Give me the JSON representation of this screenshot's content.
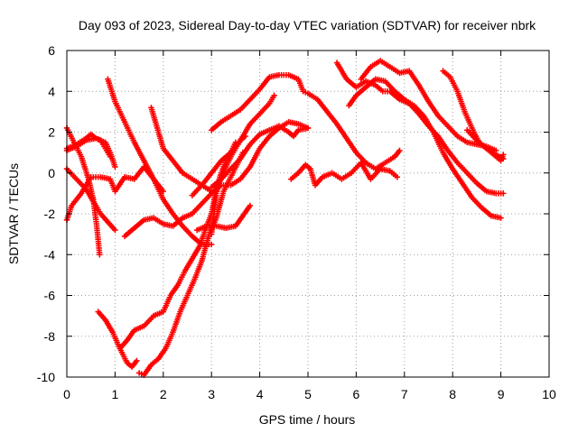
{
  "chart_data": {
    "type": "scatter",
    "title": "Day 093 of 2023, Sidereal Day-to-day VTEC variation (SDTVAR) for receiver nbrk",
    "xlabel": "GPS time / hours",
    "ylabel": "SDTVAR / TECUs",
    "xlim": [
      0,
      10
    ],
    "ylim": [
      -10,
      6
    ],
    "xticks": [
      "0",
      "1",
      "2",
      "3",
      "4",
      "5",
      "6",
      "7",
      "8",
      "9",
      "10"
    ],
    "yticks": [
      "-10",
      "-8",
      "-6",
      "-4",
      "-2",
      "0",
      "2",
      "4",
      "6"
    ],
    "grid": true,
    "marker": "+",
    "color": "#ff0000",
    "series": [
      {
        "points": [
          [
            0,
            2.2
          ],
          [
            0.15,
            1.5
          ],
          [
            0.3,
            0.8
          ],
          [
            0.45,
            -0.3
          ],
          [
            0.55,
            -1.3
          ],
          [
            0.62,
            -2.6
          ],
          [
            0.68,
            -4.0
          ]
        ]
      },
      {
        "points": [
          [
            0,
            0.2
          ],
          [
            0.2,
            -0.3
          ],
          [
            0.4,
            -0.8
          ],
          [
            0.6,
            -1.6
          ],
          [
            0.7,
            -2.0
          ],
          [
            0.85,
            -2.4
          ],
          [
            1.0,
            -2.8
          ]
        ]
      },
      {
        "points": [
          [
            0,
            -2.3
          ],
          [
            0.1,
            -1.6
          ],
          [
            0.3,
            -1.0
          ],
          [
            0.5,
            -0.2
          ],
          [
            0.7,
            -0.2
          ],
          [
            0.9,
            -0.3
          ],
          [
            1.0,
            -0.9
          ],
          [
            1.2,
            -0.2
          ],
          [
            1.4,
            -0.3
          ],
          [
            1.6,
            0.3
          ],
          [
            1.8,
            -0.3
          ],
          [
            2.0,
            -0.9
          ]
        ]
      },
      {
        "points": [
          [
            0,
            1.1
          ],
          [
            0.2,
            1.3
          ],
          [
            0.4,
            1.6
          ],
          [
            0.6,
            1.7
          ],
          [
            0.8,
            1.5
          ],
          [
            0.9,
            1.0
          ],
          [
            1.0,
            0.3
          ]
        ]
      },
      {
        "points": [
          [
            0,
            1.2
          ],
          [
            0.2,
            1.4
          ],
          [
            0.4,
            1.7
          ],
          [
            0.5,
            1.9
          ],
          [
            0.6,
            1.7
          ],
          [
            0.7,
            1.6
          ],
          [
            0.8,
            1.2
          ],
          [
            0.9,
            0.8
          ]
        ]
      },
      {
        "points": [
          [
            0.85,
            4.6
          ],
          [
            1.0,
            3.5
          ],
          [
            1.2,
            2.5
          ],
          [
            1.4,
            1.5
          ],
          [
            1.6,
            0.6
          ],
          [
            1.8,
            -0.3
          ],
          [
            2.0,
            -1.3
          ],
          [
            2.2,
            -2.0
          ],
          [
            2.4,
            -2.6
          ],
          [
            2.6,
            -3.1
          ],
          [
            2.8,
            -3.5
          ],
          [
            3.0,
            -3.5
          ]
        ]
      },
      {
        "points": [
          [
            1.75,
            3.2
          ],
          [
            1.9,
            2.0
          ],
          [
            2.0,
            1.2
          ],
          [
            2.2,
            0.6
          ],
          [
            2.4,
            0.0
          ],
          [
            2.6,
            -0.3
          ],
          [
            2.8,
            -0.6
          ],
          [
            3.0,
            -0.9
          ]
        ]
      },
      {
        "points": [
          [
            0.65,
            -6.8
          ],
          [
            0.8,
            -7.2
          ],
          [
            0.95,
            -7.8
          ],
          [
            1.1,
            -8.6
          ],
          [
            1.25,
            -9.3
          ],
          [
            1.35,
            -9.5
          ],
          [
            1.45,
            -9.2
          ]
        ]
      },
      {
        "points": [
          [
            1.5,
            -9.8
          ],
          [
            1.6,
            -9.9
          ],
          [
            1.75,
            -9.4
          ],
          [
            1.9,
            -9.1
          ],
          [
            2.05,
            -8.6
          ],
          [
            2.2,
            -7.8
          ],
          [
            2.35,
            -6.8
          ],
          [
            2.5,
            -6.0
          ],
          [
            2.65,
            -5.2
          ],
          [
            2.8,
            -4.3
          ],
          [
            2.95,
            -3.0
          ],
          [
            3.1,
            -2.2
          ],
          [
            3.25,
            -0.9
          ],
          [
            3.4,
            -0.2
          ],
          [
            3.55,
            0.5
          ],
          [
            3.65,
            1.0
          ]
        ]
      },
      {
        "points": [
          [
            1.1,
            -8.6
          ],
          [
            1.25,
            -8.2
          ],
          [
            1.4,
            -7.7
          ],
          [
            1.6,
            -7.5
          ],
          [
            1.8,
            -7.0
          ],
          [
            2.0,
            -6.8
          ],
          [
            2.15,
            -6.0
          ],
          [
            2.3,
            -5.5
          ],
          [
            2.45,
            -4.8
          ],
          [
            2.6,
            -4.2
          ],
          [
            2.75,
            -3.6
          ],
          [
            2.9,
            -2.6
          ],
          [
            3.0,
            -2.0
          ],
          [
            3.1,
            -0.8
          ],
          [
            3.2,
            0.0
          ],
          [
            3.3,
            0.6
          ],
          [
            3.4,
            1.0
          ],
          [
            3.5,
            1.5
          ]
        ]
      },
      {
        "points": [
          [
            3.0,
            -3.0
          ],
          [
            3.05,
            -2.0
          ],
          [
            3.1,
            -1.0
          ],
          [
            3.2,
            -0.2
          ],
          [
            3.3,
            0.3
          ],
          [
            3.4,
            0.8
          ],
          [
            3.5,
            1.2
          ],
          [
            3.6,
            1.6
          ],
          [
            3.7,
            1.8
          ]
        ]
      },
      {
        "points": [
          [
            1.2,
            -3.1
          ],
          [
            1.4,
            -2.7
          ],
          [
            1.6,
            -2.3
          ],
          [
            1.8,
            -2.2
          ],
          [
            2.0,
            -2.5
          ],
          [
            2.2,
            -2.6
          ],
          [
            2.4,
            -2.2
          ],
          [
            2.6,
            -2.0
          ],
          [
            2.8,
            -1.5
          ],
          [
            3.0,
            -1.0
          ],
          [
            3.2,
            -0.6
          ],
          [
            3.4,
            -0.6
          ],
          [
            3.6,
            -0.3
          ],
          [
            3.8,
            0.3
          ],
          [
            4.0,
            1.2
          ],
          [
            4.2,
            1.8
          ],
          [
            4.4,
            2.2
          ],
          [
            4.6,
            2.5
          ],
          [
            4.8,
            2.4
          ],
          [
            5.0,
            2.2
          ]
        ]
      },
      {
        "points": [
          [
            2.7,
            -2.8
          ],
          [
            2.9,
            -2.6
          ],
          [
            3.1,
            -2.6
          ],
          [
            3.3,
            -2.7
          ],
          [
            3.5,
            -2.6
          ],
          [
            3.65,
            -2.1
          ],
          [
            3.8,
            -1.6
          ]
        ]
      },
      {
        "points": [
          [
            3.0,
            -0.7
          ],
          [
            3.2,
            -0.3
          ],
          [
            3.4,
            0.2
          ],
          [
            3.6,
            0.7
          ],
          [
            3.8,
            1.4
          ],
          [
            4.0,
            1.9
          ],
          [
            4.2,
            2.1
          ],
          [
            4.4,
            2.3
          ],
          [
            4.6,
            2.0
          ],
          [
            4.7,
            1.8
          ],
          [
            4.8,
            2.1
          ],
          [
            5.0,
            2.2
          ]
        ]
      },
      {
        "points": [
          [
            3.0,
            2.1
          ],
          [
            3.2,
            2.5
          ],
          [
            3.4,
            2.8
          ],
          [
            3.6,
            3.1
          ],
          [
            3.8,
            3.6
          ],
          [
            4.0,
            4.1
          ],
          [
            4.2,
            4.7
          ],
          [
            4.4,
            4.8
          ],
          [
            4.6,
            4.8
          ],
          [
            4.8,
            4.6
          ],
          [
            4.9,
            4.0
          ],
          [
            5.0,
            3.9
          ],
          [
            5.2,
            3.6
          ],
          [
            5.4,
            3.0
          ],
          [
            5.6,
            2.4
          ],
          [
            5.8,
            1.7
          ],
          [
            6.0,
            1.0
          ],
          [
            6.2,
            0.5
          ],
          [
            6.4,
            0.2
          ],
          [
            6.6,
            0.5
          ],
          [
            6.8,
            0.8
          ],
          [
            6.9,
            1.1
          ]
        ]
      },
      {
        "points": [
          [
            2.6,
            -1.1
          ],
          [
            2.8,
            -0.6
          ],
          [
            3.0,
            0.0
          ],
          [
            3.2,
            0.6
          ],
          [
            3.4,
            1.0
          ],
          [
            3.6,
            1.6
          ],
          [
            3.8,
            2.4
          ],
          [
            4.0,
            2.9
          ],
          [
            4.2,
            3.4
          ],
          [
            4.3,
            3.8
          ]
        ]
      },
      {
        "points": [
          [
            4.65,
            -0.3
          ],
          [
            4.8,
            0.0
          ],
          [
            4.95,
            0.4
          ],
          [
            5.05,
            0.2
          ],
          [
            5.15,
            -0.6
          ],
          [
            5.3,
            -0.2
          ],
          [
            5.5,
            0.0
          ],
          [
            5.7,
            -0.3
          ],
          [
            5.9,
            0.0
          ],
          [
            6.1,
            0.5
          ],
          [
            6.3,
            -0.3
          ],
          [
            6.5,
            0.2
          ],
          [
            6.7,
            0.1
          ],
          [
            6.85,
            -0.2
          ]
        ]
      },
      {
        "points": [
          [
            5.6,
            5.4
          ],
          [
            5.8,
            4.6
          ],
          [
            6.0,
            4.2
          ],
          [
            6.2,
            4.5
          ],
          [
            6.4,
            4.3
          ],
          [
            6.55,
            4.0
          ],
          [
            6.7,
            4.0
          ],
          [
            6.9,
            3.6
          ],
          [
            7.1,
            3.4
          ],
          [
            7.3,
            2.9
          ],
          [
            7.5,
            2.3
          ],
          [
            7.7,
            1.8
          ],
          [
            7.9,
            1.1
          ],
          [
            8.1,
            0.5
          ],
          [
            8.3,
            0.0
          ],
          [
            8.5,
            -0.5
          ],
          [
            8.7,
            -0.9
          ],
          [
            8.9,
            -1.0
          ],
          [
            9.05,
            -1.0
          ]
        ]
      },
      {
        "points": [
          [
            5.85,
            3.3
          ],
          [
            6.0,
            3.8
          ],
          [
            6.2,
            4.2
          ],
          [
            6.4,
            4.6
          ],
          [
            6.6,
            4.5
          ],
          [
            6.8,
            4.0
          ],
          [
            7.0,
            3.6
          ],
          [
            7.2,
            3.3
          ],
          [
            7.4,
            2.8
          ],
          [
            7.6,
            2.0
          ],
          [
            7.8,
            1.0
          ],
          [
            8.0,
            0.2
          ],
          [
            8.2,
            -0.5
          ],
          [
            8.4,
            -1.2
          ],
          [
            8.6,
            -1.7
          ],
          [
            8.8,
            -2.1
          ],
          [
            9.0,
            -2.2
          ]
        ]
      },
      {
        "points": [
          [
            6.1,
            4.6
          ],
          [
            6.3,
            5.2
          ],
          [
            6.5,
            5.5
          ],
          [
            6.7,
            5.2
          ],
          [
            6.9,
            4.9
          ],
          [
            7.1,
            5.0
          ],
          [
            7.3,
            4.3
          ],
          [
            7.5,
            3.5
          ],
          [
            7.7,
            2.8
          ],
          [
            7.9,
            2.3
          ],
          [
            8.1,
            1.8
          ],
          [
            8.3,
            1.5
          ],
          [
            8.5,
            1.4
          ],
          [
            8.7,
            1.3
          ],
          [
            8.9,
            1.1
          ]
        ]
      },
      {
        "points": [
          [
            7.8,
            5.0
          ],
          [
            7.95,
            4.7
          ],
          [
            8.1,
            4.0
          ],
          [
            8.25,
            3.0
          ],
          [
            8.4,
            2.2
          ],
          [
            8.55,
            1.5
          ],
          [
            8.7,
            1.2
          ],
          [
            8.85,
            0.9
          ],
          [
            9.0,
            0.6
          ],
          [
            9.05,
            0.9
          ]
        ]
      },
      {
        "points": [
          [
            8.3,
            2.1
          ],
          [
            8.5,
            1.6
          ],
          [
            8.7,
            1.2
          ],
          [
            8.9,
            0.9
          ],
          [
            9.05,
            0.7
          ]
        ]
      }
    ]
  }
}
